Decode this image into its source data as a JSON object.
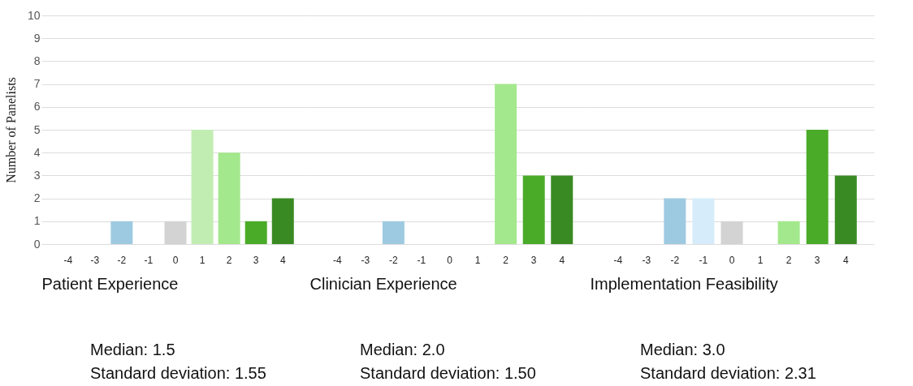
{
  "chart_data": [
    {
      "type": "bar",
      "categories": [
        "-4",
        "-3",
        "-2",
        "-1",
        "0",
        "1",
        "2",
        "3",
        "4"
      ],
      "values": [
        0,
        0,
        1,
        0,
        1,
        5,
        4,
        1,
        2
      ],
      "colors": [
        "#9ecae1",
        "#9ecae1",
        "#9ecae1",
        "#d6ecfb",
        "#d3d3d3",
        "#c2edb2",
        "#a3e88c",
        "#4aab28",
        "#3a8a23"
      ],
      "xlabel": "Patient Experience",
      "ylabel": "Number of Panelists",
      "ylim": [
        0,
        10
      ],
      "yticks": [
        0,
        1,
        2,
        3,
        4,
        5,
        6,
        7,
        8,
        9,
        10
      ],
      "grid": "y",
      "annotations": [
        "Median: 1.5",
        "Standard deviation: 1.55"
      ]
    },
    {
      "type": "bar",
      "categories": [
        "-4",
        "-3",
        "-2",
        "-1",
        "0",
        "1",
        "2",
        "3",
        "4"
      ],
      "values": [
        0,
        0,
        1,
        0,
        0,
        0,
        7,
        3,
        3
      ],
      "colors": [
        "#9ecae1",
        "#9ecae1",
        "#9ecae1",
        "#d6ecfb",
        "#d3d3d3",
        "#c2edb2",
        "#a3e88c",
        "#4aab28",
        "#3a8a23"
      ],
      "xlabel": "Clinician Experience",
      "ylim": [
        0,
        10
      ],
      "yticks": [
        0,
        1,
        2,
        3,
        4,
        5,
        6,
        7,
        8,
        9,
        10
      ],
      "grid": "y",
      "tick_labels": "x",
      "annotations": [
        "Median: 2.0",
        "Standard deviation: 1.50"
      ]
    },
    {
      "type": "bar",
      "categories": [
        "-4",
        "-3",
        "-2",
        "-1",
        "0",
        "1",
        "2",
        "3",
        "4"
      ],
      "values": [
        0,
        0,
        2,
        2,
        1,
        0,
        1,
        5,
        3
      ],
      "colors": [
        "#9ecae1",
        "#9ecae1",
        "#9ecae1",
        "#d6ecfb",
        "#d3d3d3",
        "#c2edb2",
        "#a3e88c",
        "#4aab28",
        "#3a8a23"
      ],
      "xlabel": "Implementation Feasibility",
      "ylim": [
        0,
        10
      ],
      "yticks": [
        0,
        1,
        2,
        3,
        4,
        5,
        6,
        7,
        8,
        9,
        10
      ],
      "grid": "y",
      "tick_labels": "x",
      "annotations": [
        "Median: 3.0",
        "Standard deviation: 2.31"
      ]
    }
  ]
}
